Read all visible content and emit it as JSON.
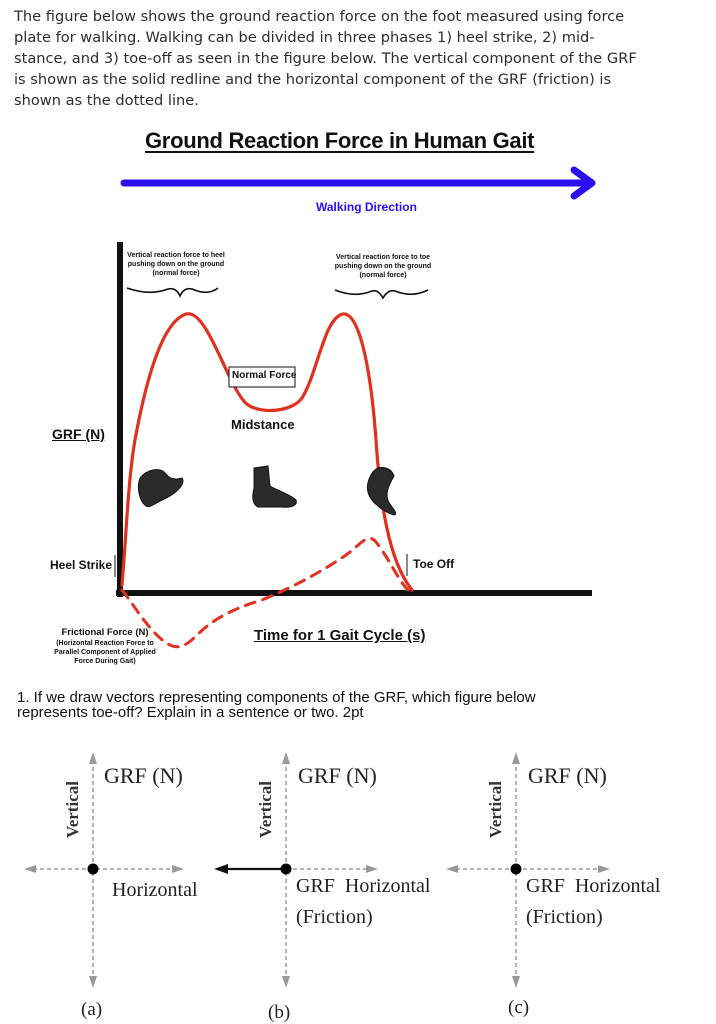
{
  "intro": {
    "lines": [
      "The figure below shows the ground reaction force on the foot measured using force",
      "plate for walking. Walking can be divided in  three phases 1) heel strike, 2) mid-",
      "stance, and 3) toe-off as seen in the figure below. The vertical component of the GRF",
      "is shown as the solid redline and the horizontal component of the GRF (friction) is",
      "shown as the dotted line."
    ]
  },
  "figure": {
    "title": "Ground Reaction Force in Human Gait",
    "walking_direction": "Walking Direction",
    "heel_annotation": [
      "Vertical reaction force to heel",
      "pushing down on the ground",
      "(normal force)"
    ],
    "toe_annotation": [
      "Vertical reaction force to toe",
      "pushing down on the ground",
      "(normal force)"
    ],
    "normal_force": "Normal Force",
    "midstance": "Midstance",
    "grf_label": "GRF (N)",
    "heel_strike": "Heel Strike",
    "toe_off": "Toe Off",
    "time_label": "Time for 1 Gait Cycle (s)",
    "frictional_annotation": [
      "Frictional Force (N)",
      "(Horizontal Reaction Force to",
      "Parallel Component of Applied",
      "Force During Gait)"
    ],
    "colors": {
      "vertical_grf": "#e0301e",
      "arrow": "#2a10f0",
      "axis": "#111111"
    }
  },
  "question": {
    "line1": "1. If we draw vectors representing components of the GRF, which figure below",
    "line2": "represents toe-off? Explain in a sentence or two.  2pt"
  },
  "options": {
    "a": {
      "vertical": "Vertical",
      "grf": "GRF (N)",
      "horizontal": "Horizontal",
      "caption": "(a)"
    },
    "b": {
      "vertical": "Vertical",
      "grf": "GRF (N)",
      "horizontal": "GRF  Horizontal",
      "friction": "(Friction)",
      "caption": "(b)"
    },
    "c": {
      "vertical": "Vertical",
      "grf": "GRF (N)",
      "horizontal": "GRF  Horizontal",
      "friction": "(Friction)",
      "caption": "(c)"
    }
  }
}
